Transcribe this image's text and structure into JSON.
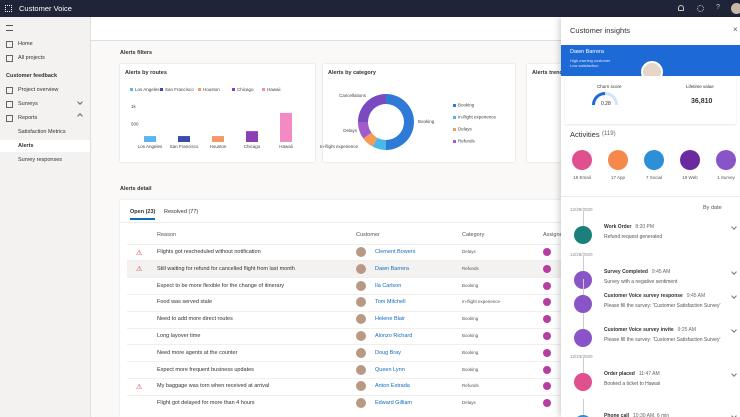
{
  "app": {
    "title": "Customer Voice"
  },
  "nav": {
    "items": [
      "Home",
      "All projects"
    ],
    "section": "Customer feedback",
    "feedback_items": [
      "Project overview",
      "Surveys",
      "Reports",
      "Satisfaction Metrics",
      "Alerts",
      "Survey responses"
    ],
    "selected": 4
  },
  "filters": {
    "title": "Alerts filters",
    "routes": {
      "type": "bar",
      "title": "Alerts by routes",
      "categories": [
        "Los Angeles",
        "San Francisco",
        "Houston",
        "Chicago",
        "Hawaii"
      ],
      "colors": [
        "#5bb5f0",
        "#3b4ba8",
        "#f29a6a",
        "#8c3fb5",
        "#f28bc3"
      ],
      "values": [
        170,
        170,
        170,
        310,
        830
      ],
      "ylim": [
        0,
        1000
      ],
      "yticks": [
        {
          "value": 1000,
          "label": "1k"
        },
        500
      ]
    },
    "category": {
      "type": "pie",
      "title": "Alerts by category",
      "segments": [
        {
          "name": "Booking",
          "value": 50,
          "color": "#2f7ad6"
        },
        {
          "name": "In-flight experience",
          "value": 8,
          "color": "#49b8e8"
        },
        {
          "name": "Delays",
          "value": 7,
          "color": "#f59b54"
        },
        {
          "name": "Refunds",
          "value": 10,
          "color": "#a05cc8"
        },
        {
          "name": "Cancellations",
          "value": 25,
          "color": "#7a4bc0"
        }
      ]
    },
    "trend": {
      "title": "Alerts trend"
    }
  },
  "detail": {
    "title": "Alerts detail",
    "tabs": [
      "Open (23)",
      "Resolved (77)"
    ],
    "columns": [
      "Reason",
      "Customer",
      "Category",
      "Assignee"
    ],
    "rows": [
      {
        "warning": true,
        "reason": "Flights got rescheduled without notification",
        "customer": "Clement Bowers",
        "category": "Delays"
      },
      {
        "warning": true,
        "reason": "Still waiting for refund for cancelled flight from last month",
        "customer": "Dawn Barrera",
        "category": "Refunds"
      },
      {
        "warning": false,
        "reason": "Expect to be more flexible for the change of itinerary",
        "customer": "Ila Carlson",
        "category": "Booking"
      },
      {
        "warning": false,
        "reason": "Food was served stale",
        "customer": "Tom Mitchell",
        "category": "In-flight experience"
      },
      {
        "warning": false,
        "reason": "Need to add more direct routes",
        "customer": "Helene Blair",
        "category": "Booking"
      },
      {
        "warning": false,
        "reason": "Long layover time",
        "customer": "Alonzo Richard",
        "category": "Booking"
      },
      {
        "warning": false,
        "reason": "Need more agents at the counter",
        "customer": "Doug Bray",
        "category": "Booking"
      },
      {
        "warning": false,
        "reason": "Expect more frequent business updates",
        "customer": "Queen Lynn",
        "category": "Booking"
      },
      {
        "warning": true,
        "reason": "My baggage was torn when received at arrival",
        "customer": "Anton Estrada",
        "category": "Refunds"
      },
      {
        "warning": false,
        "reason": "Flight got delayed for more than 4 hours",
        "customer": "Edward Gilliam",
        "category": "Delays"
      }
    ]
  },
  "insights": {
    "title": "Customer insights",
    "customer": {
      "name": "Dawn Barrera",
      "tags": [
        "High-earning customer",
        "Low satisfaction"
      ]
    },
    "churn": {
      "label": "Churn score",
      "value": "0.28"
    },
    "lifetime": {
      "label": "Lifetime value",
      "value": "36,810"
    },
    "activities_title": "Activities",
    "activities_count": "(119)",
    "channels": [
      {
        "label": "19 Email",
        "color": "#e0508f"
      },
      {
        "label": "17 App",
        "color": "#f4894a"
      },
      {
        "label": "7 Social",
        "color": "#2d8fd8"
      },
      {
        "label": "19 Web",
        "color": "#6b2aa0"
      },
      {
        "label": "1 Survey",
        "color": "#8a54c9"
      }
    ],
    "sort": "By date",
    "timeline": [
      {
        "date": "12/29/2020"
      },
      {
        "title": "Work Order",
        "time": "8:20 PM",
        "text": "Refund request generated",
        "color": "#1b7f7a"
      },
      {
        "date": "12/28/2020"
      },
      {
        "title": "Survey Completed",
        "time": "9:45 AM",
        "text": "Survey with a negative sentiment",
        "color": "#8a54c9"
      },
      {
        "title": "Customer Voice survey response",
        "time": "9:45 AM",
        "text": "Please fill the survey: 'Customer Satisfaction Survey'",
        "color": "#8a54c9"
      },
      {
        "title": "Customer Voice survey invite",
        "time": "9:25 AM",
        "text": "Please fill the survey: 'Customer Satisfaction Survey'",
        "color": "#8a54c9"
      },
      {
        "date": "12/23/2020"
      },
      {
        "title": "Order placed",
        "time": "11:47 AM",
        "text": "Booked a ticket to Hawaii",
        "color": "#e0508f"
      },
      {
        "title": "Phone call",
        "time": "10:30 AM, 6 min",
        "color": "#2d8fd8"
      }
    ]
  }
}
